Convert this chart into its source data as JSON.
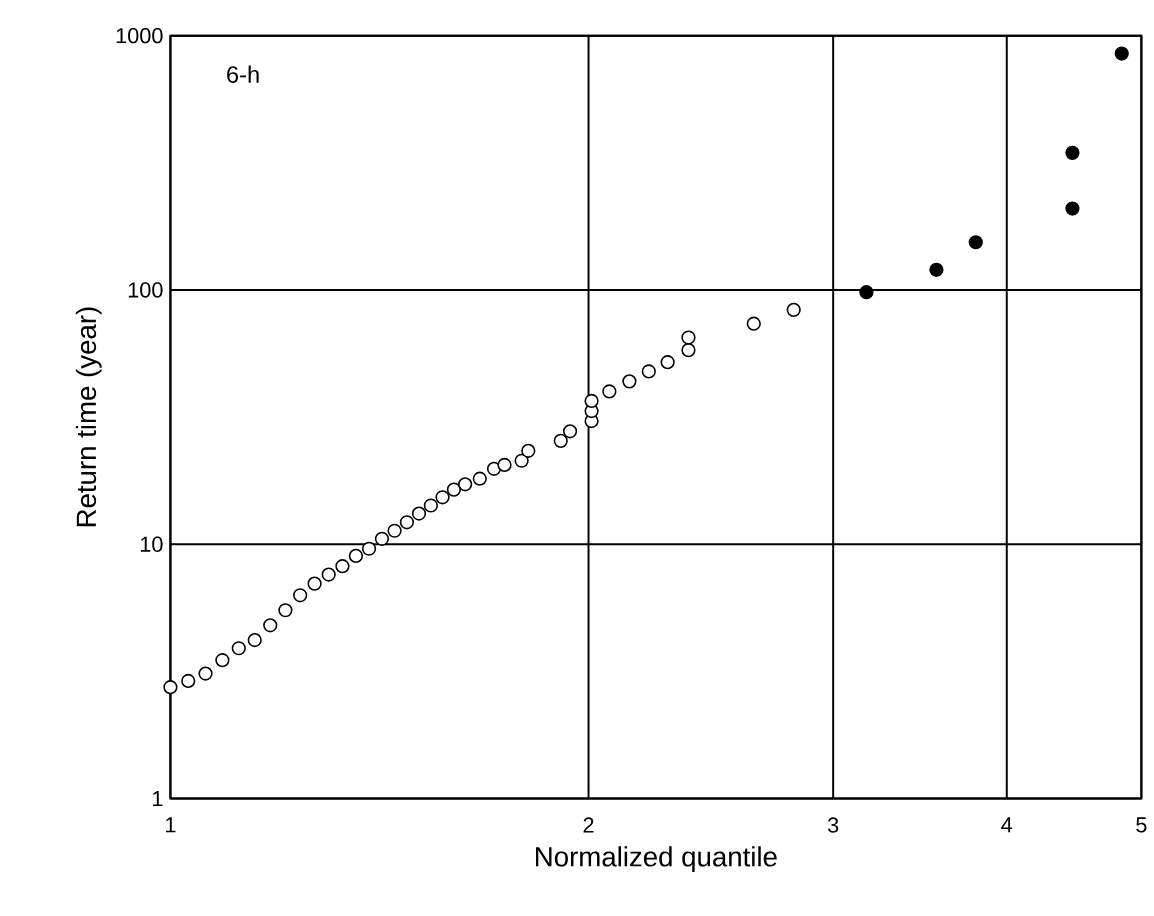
{
  "chart_data": {
    "type": "scatter",
    "xlabel": "Normalized quantile",
    "ylabel": "Return time (year)",
    "annotations": [
      "6-h"
    ],
    "log": "xy",
    "grid": true,
    "marker": "circle",
    "xlim": [
      1,
      5
    ],
    "xticks": [
      1,
      2,
      3,
      4,
      5
    ],
    "ylim": [
      1,
      1000
    ],
    "yticks": [
      1,
      10,
      100,
      1000
    ],
    "series": [
      {
        "color": "#ffffff",
        "x": [
          1.0,
          1.03,
          1.06,
          1.09,
          1.12,
          1.15,
          1.18,
          1.21,
          1.24,
          1.27,
          1.3,
          1.33,
          1.36,
          1.39,
          1.42,
          1.45,
          1.48,
          1.51,
          1.54,
          1.57,
          1.6,
          1.63,
          1.67,
          1.71,
          1.74,
          1.79,
          1.81,
          1.91,
          1.94,
          2.01,
          2.01,
          2.01,
          2.07,
          2.14,
          2.21,
          2.28,
          2.36,
          2.36,
          2.63,
          2.81
        ],
        "values": [
          2.74,
          2.9,
          3.1,
          3.5,
          3.9,
          4.2,
          4.8,
          5.5,
          6.3,
          7.0,
          7.6,
          8.2,
          9.0,
          9.6,
          10.5,
          11.3,
          12.2,
          13.2,
          14.2,
          15.3,
          16.4,
          17.2,
          18.1,
          19.8,
          20.5,
          21.3,
          23.3,
          25.5,
          27.8,
          30.5,
          33.4,
          36.6,
          39.9,
          43.7,
          47.8,
          52,
          58,
          65,
          73.7,
          83.5
        ]
      },
      {
        "color": "#000000",
        "x": [
          3.17,
          3.56,
          3.8,
          4.46,
          4.46,
          4.84
        ],
        "values": [
          98,
          120,
          154,
          209,
          346,
          850
        ]
      }
    ]
  }
}
